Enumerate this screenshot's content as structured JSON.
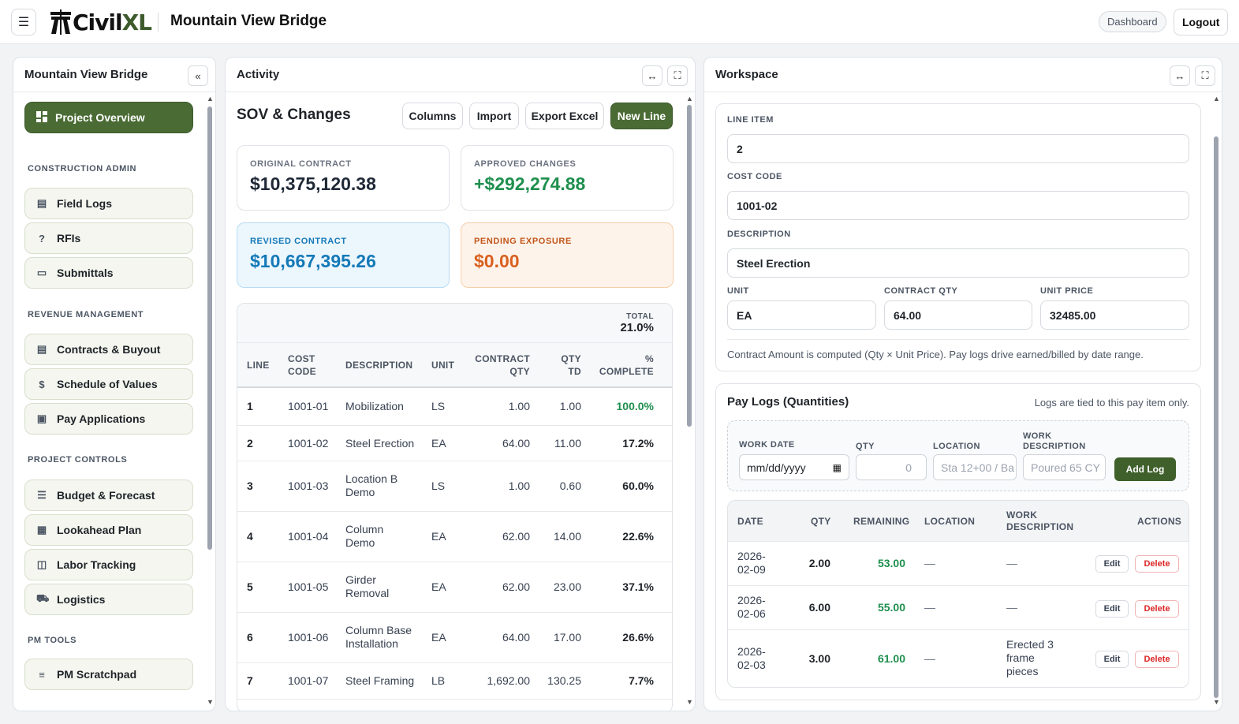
{
  "app": {
    "logo_text_a": "Civil",
    "logo_text_b": "XL",
    "project_title": "Mountain View Bridge",
    "dashboard_label": "Dashboard",
    "logout_label": "Logout"
  },
  "sidebar": {
    "title": "Mountain View Bridge",
    "collapse_icon": "«",
    "overview_label": "Project Overview",
    "sections": [
      {
        "label": "CONSTRUCTION ADMIN"
      },
      {
        "label": "REVENUE MANAGEMENT"
      },
      {
        "label": "PROJECT CONTROLS"
      },
      {
        "label": "PM TOOLS"
      }
    ],
    "items": [
      {
        "label": "Field Logs",
        "icon": "clipboard-icon"
      },
      {
        "label": "RFIs",
        "icon": "question-icon"
      },
      {
        "label": "Submittals",
        "icon": "folder-icon"
      },
      {
        "label": "Contracts & Buyout",
        "icon": "document-icon"
      },
      {
        "label": "Schedule of Values",
        "icon": "dollar-icon"
      },
      {
        "label": "Pay Applications",
        "icon": "pay-icon"
      },
      {
        "label": "Budget & Forecast",
        "icon": "list-icon"
      },
      {
        "label": "Lookahead Plan",
        "icon": "calendar-icon"
      },
      {
        "label": "Labor Tracking",
        "icon": "labor-icon"
      },
      {
        "label": "Logistics",
        "icon": "truck-icon"
      },
      {
        "label": "PM Scratchpad",
        "icon": "notes-icon"
      }
    ]
  },
  "activity": {
    "title": "Activity",
    "sov_title": "SOV & Changes",
    "buttons": {
      "columns": "Columns",
      "import": "Import",
      "export": "Export Excel",
      "new_line": "New Line"
    },
    "cards": {
      "original_label": "ORIGINAL CONTRACT",
      "original_value": "$10,375,120.38",
      "approved_label": "APPROVED CHANGES",
      "approved_value": "+$292,274.88",
      "revised_label": "REVISED CONTRACT",
      "revised_value": "$10,667,395.26",
      "pending_label": "PENDING EXPOSURE",
      "pending_value": "$0.00"
    },
    "total_label": "TOTAL",
    "total_value": "21.0%",
    "columns": [
      "LINE",
      "COST CODE",
      "DESCRIPTION",
      "UNIT",
      "CONTRACT QTY",
      "QTY TD",
      "% COMPLETE"
    ],
    "col_cost_a": "COST",
    "col_cost_b": "CODE",
    "col_cqty_a": "CONTRACT",
    "col_cqty_b": "QTY",
    "col_qtd_a": "QTY",
    "col_qtd_b": "TD",
    "col_pct_a": "%",
    "col_pct_b": "COMPLETE",
    "rows": [
      {
        "line": "1",
        "code": "1001-01",
        "desc": "Mobilization",
        "desc2": "",
        "unit": "LS",
        "cqty": "1.00",
        "qtd": "1.00",
        "pct": "100.0%"
      },
      {
        "line": "2",
        "code": "1001-02",
        "desc": "Steel Erection",
        "desc2": "",
        "unit": "EA",
        "cqty": "64.00",
        "qtd": "11.00",
        "pct": "17.2%"
      },
      {
        "line": "3",
        "code": "1001-03",
        "desc": "Location B",
        "desc2": "Demo",
        "unit": "LS",
        "cqty": "1.00",
        "qtd": "0.60",
        "pct": "60.0%"
      },
      {
        "line": "4",
        "code": "1001-04",
        "desc": "Column",
        "desc2": "Demo",
        "unit": "EA",
        "cqty": "62.00",
        "qtd": "14.00",
        "pct": "22.6%"
      },
      {
        "line": "5",
        "code": "1001-05",
        "desc": "Girder",
        "desc2": "Removal",
        "unit": "EA",
        "cqty": "62.00",
        "qtd": "23.00",
        "pct": "37.1%"
      },
      {
        "line": "6",
        "code": "1001-06",
        "desc": "Column Base",
        "desc2": "Installation",
        "unit": "EA",
        "cqty": "64.00",
        "qtd": "17.00",
        "pct": "26.6%"
      },
      {
        "line": "7",
        "code": "1001-07",
        "desc": "Steel Framing",
        "desc2": "",
        "unit": "LB",
        "cqty": "1,692.00",
        "qtd": "130.25",
        "pct": "7.7%"
      }
    ]
  },
  "workspace": {
    "title": "Workspace",
    "form": {
      "line_item_label": "LINE ITEM",
      "line_item_value": "2",
      "cost_code_label": "COST CODE",
      "cost_code_value": "1001-02",
      "description_label": "DESCRIPTION",
      "description_value": "Steel Erection",
      "unit_label": "UNIT",
      "unit_value": "EA",
      "contract_qty_label": "CONTRACT QTY",
      "contract_qty_value": "64.00",
      "unit_price_label": "UNIT PRICE",
      "unit_price_value": "32485.00",
      "note": "Contract Amount is computed (Qty × Unit Price). Pay logs drive earned/billed by date range."
    },
    "paylogs": {
      "title": "Pay Logs (Quantities)",
      "note": "Logs are tied to this pay item only.",
      "work_date_label": "WORK DATE",
      "work_date_placeholder": "mm/dd/yyyy",
      "qty_label": "QTY",
      "qty_placeholder": "0",
      "location_label": "LOCATION",
      "location_placeholder": "Sta 12+00 / Ba",
      "work_desc_label_a": "WORK",
      "work_desc_label_b": "DESCRIPTION",
      "work_desc_placeholder": "Poured 65 CY",
      "add_log_label": "Add Log",
      "col_date": "DATE",
      "col_qty": "QTY",
      "col_remaining": "REMAINING",
      "col_location": "LOCATION",
      "col_workdesc_a": "WORK",
      "col_workdesc_b": "DESCRIPTION",
      "col_actions": "ACTIONS",
      "edit_label": "Edit",
      "delete_label": "Delete",
      "rows": [
        {
          "date_a": "2026-",
          "date_b": "02-09",
          "qty": "2.00",
          "remaining": "53.00",
          "location": "—",
          "desc_a": "—",
          "desc_b": "",
          "desc_c": ""
        },
        {
          "date_a": "2026-",
          "date_b": "02-06",
          "qty": "6.00",
          "remaining": "55.00",
          "location": "—",
          "desc_a": "—",
          "desc_b": "",
          "desc_c": ""
        },
        {
          "date_a": "2026-",
          "date_b": "02-03",
          "qty": "3.00",
          "remaining": "61.00",
          "location": "—",
          "desc_a": "Erected 3",
          "desc_b": "frame",
          "desc_c": "pieces"
        }
      ]
    }
  }
}
